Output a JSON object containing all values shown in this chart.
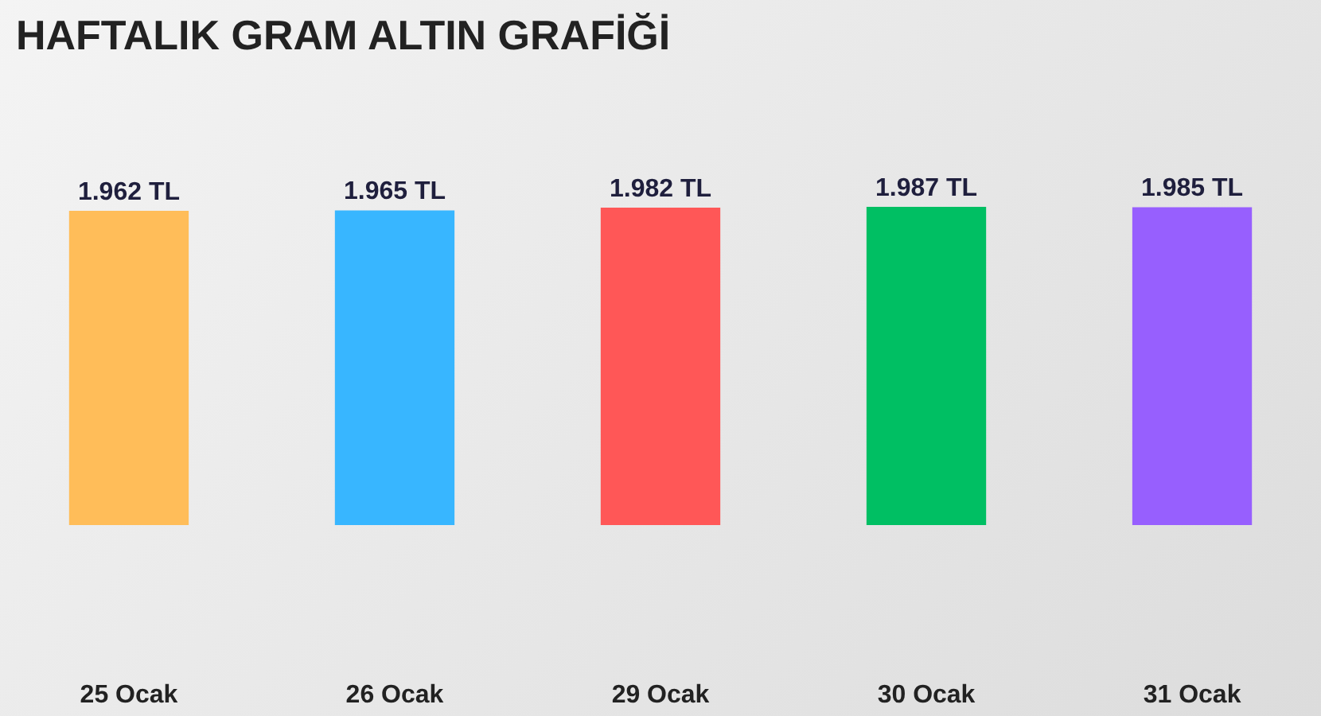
{
  "chart_data": {
    "type": "bar",
    "title": "HAFTALIK GRAM ALTIN GRAFİĞİ",
    "categories": [
      "25 Ocak",
      "26 Ocak",
      "29 Ocak",
      "30 Ocak",
      "31 Ocak"
    ],
    "values": [
      1962,
      1965,
      1982,
      1987,
      1985
    ],
    "colors": [
      "#ffbd59",
      "#38b6ff",
      "#ff5757",
      "#00bf63",
      "#975ffe"
    ],
    "value_labels": [
      "1.962 TL",
      "1.965 TL",
      "1.982 TL",
      "1.987 TL",
      "1.985 TL"
    ],
    "tick_labels": "x"
  }
}
